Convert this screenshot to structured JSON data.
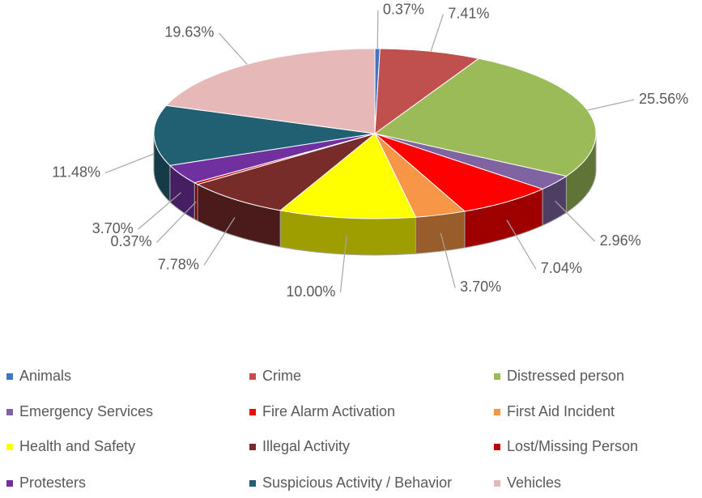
{
  "chart_data": {
    "type": "pie",
    "categories": [
      "Animals",
      "Crime",
      "Distressed person",
      "Emergency Services",
      "Fire Alarm Activation",
      "First Aid Incident",
      "Health and Safety",
      "Illegal Activity",
      "Lost/Missing Person",
      "Protesters",
      "Suspicious Activity / Behavior",
      "Vehicles"
    ],
    "values": [
      0.37,
      7.41,
      25.56,
      2.96,
      7.04,
      3.7,
      10.0,
      7.78,
      0.37,
      3.7,
      11.48,
      19.63
    ],
    "value_labels": [
      "0.37%",
      "7.41%",
      "25.56%",
      "2.96%",
      "7.04%",
      "3.70%",
      "10.00%",
      "7.78%",
      "0.37%",
      "3.70%",
      "11.48%",
      "19.63%"
    ],
    "colors": [
      "#4472c4",
      "#c0504d",
      "#9bbb59",
      "#8064a2",
      "#ff0000",
      "#f79646",
      "#ffff00",
      "#772c2a",
      "#c00000",
      "#7030a0",
      "#215f73",
      "#e6b9b8"
    ],
    "legend": "bottom"
  }
}
